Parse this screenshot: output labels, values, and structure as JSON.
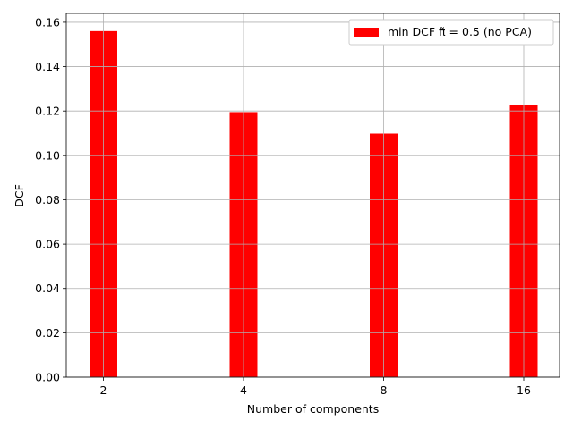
{
  "chart_data": {
    "type": "bar",
    "categories": [
      "2",
      "4",
      "8",
      "16"
    ],
    "series": [
      {
        "name": "min DCF π̃ = 0.5 (no PCA)",
        "values": [
          0.156,
          0.1195,
          0.1098,
          0.1229
        ],
        "color": "#ff0000"
      }
    ],
    "xlabel": "Number of components",
    "ylabel": "DCF",
    "ylim": [
      0,
      0.164
    ],
    "yticks": [
      0.0,
      0.02,
      0.04,
      0.06,
      0.08,
      0.1,
      0.12,
      0.14,
      0.16
    ],
    "ytick_labels": [
      "0.00",
      "0.02",
      "0.04",
      "0.06",
      "0.08",
      "0.10",
      "0.12",
      "0.14",
      "0.16"
    ],
    "grid": true,
    "legend_position": "top-right"
  }
}
